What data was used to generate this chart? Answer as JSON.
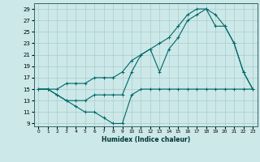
{
  "xlabel": "Humidex (Indice chaleur)",
  "bg_color": "#cce8e8",
  "grid_color": "#aacccc",
  "line_color": "#006868",
  "xlim": [
    -0.5,
    23.5
  ],
  "ylim": [
    8.5,
    30
  ],
  "yticks": [
    9,
    11,
    13,
    15,
    17,
    19,
    21,
    23,
    25,
    27,
    29
  ],
  "xticks": [
    0,
    1,
    2,
    3,
    4,
    5,
    6,
    7,
    8,
    9,
    10,
    11,
    12,
    13,
    14,
    15,
    16,
    17,
    18,
    19,
    20,
    21,
    22,
    23
  ],
  "line1_x": [
    0,
    1,
    2,
    3,
    4,
    5,
    6,
    7,
    8,
    9,
    10,
    11,
    12,
    13,
    14,
    15,
    16,
    17,
    18,
    19,
    20,
    21,
    22,
    23
  ],
  "line1_y": [
    15,
    15,
    15,
    16,
    16,
    16,
    17,
    17,
    17,
    18,
    20,
    21,
    22,
    23,
    24,
    26,
    28,
    29,
    29,
    28,
    26,
    23,
    18,
    15
  ],
  "line2_x": [
    0,
    1,
    2,
    3,
    4,
    5,
    6,
    7,
    8,
    9,
    10,
    11,
    12,
    13,
    14,
    15,
    16,
    17,
    18,
    19,
    20,
    21,
    22,
    23
  ],
  "line2_y": [
    15,
    15,
    14,
    13,
    13,
    13,
    14,
    14,
    14,
    14,
    18,
    21,
    22,
    18,
    22,
    24,
    27,
    28,
    29,
    26,
    26,
    23,
    18,
    15
  ],
  "line3_x": [
    0,
    1,
    2,
    3,
    4,
    5,
    6,
    7,
    8,
    9,
    10,
    11,
    12,
    13,
    14,
    15,
    16,
    17,
    18,
    19,
    20,
    21,
    22,
    23
  ],
  "line3_y": [
    15,
    15,
    14,
    13,
    12,
    11,
    11,
    10,
    9,
    9,
    14,
    15,
    15,
    15,
    15,
    15,
    15,
    15,
    15,
    15,
    15,
    15,
    15,
    15
  ]
}
